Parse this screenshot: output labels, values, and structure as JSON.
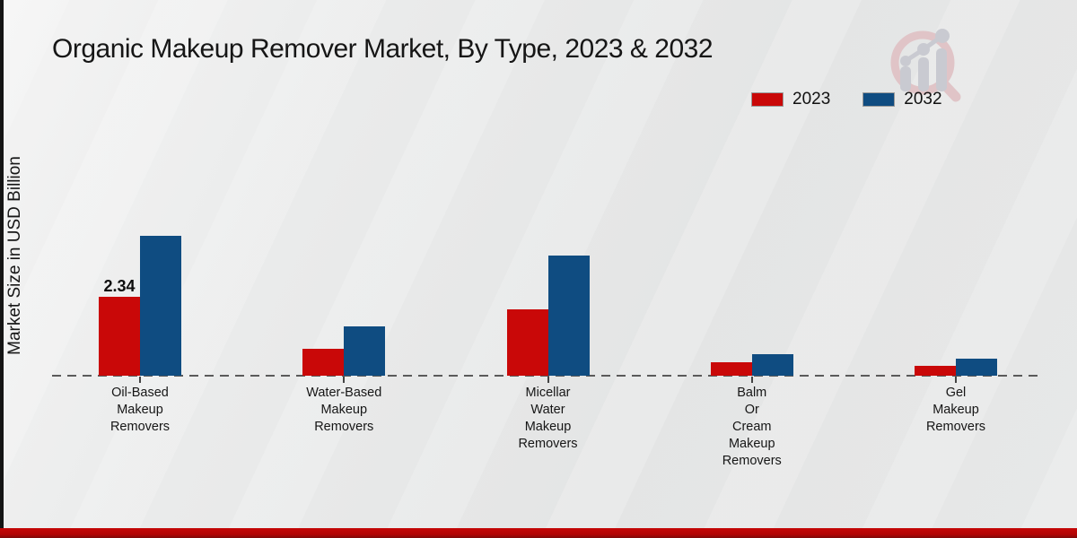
{
  "page": {
    "title": "Organic Makeup Remover Market, By Type, 2023 & 2032",
    "ylabel": "Market Size in USD Billion",
    "brand_logo_icon": "magnifier-bar-chart-logo",
    "footer_band_color": "#b30505",
    "left_strip_color": "#141414"
  },
  "legend": {
    "items": [
      {
        "label": "2023",
        "color": "#c90808"
      },
      {
        "label": "2032",
        "color": "#0f4c81"
      }
    ]
  },
  "chart_data": {
    "type": "bar",
    "title": "Organic Makeup Remover Market, By Type, 2023 & 2032",
    "ylabel": "Market Size in USD Billion",
    "xlabel": "",
    "categories": [
      "Oil-Based Makeup Removers",
      "Water-Based Makeup Removers",
      "Micellar Water Makeup Removers",
      "Balm Or Cream Makeup Removers",
      "Gel Makeup Removers"
    ],
    "category_label_lines": [
      [
        "Oil-Based",
        "Makeup",
        "Removers"
      ],
      [
        "Water-Based",
        "Makeup",
        "Removers"
      ],
      [
        "Micellar",
        "Water",
        "Makeup",
        "Removers"
      ],
      [
        "Balm",
        "Or",
        "Cream",
        "Makeup",
        "Removers"
      ],
      [
        "Gel",
        "Makeup",
        "Removers"
      ]
    ],
    "series": [
      {
        "name": "2023",
        "color": "#c90808",
        "values": [
          2.34,
          0.79,
          1.97,
          0.4,
          0.29
        ]
      },
      {
        "name": "2032",
        "color": "#0f4c81",
        "values": [
          4.16,
          1.46,
          3.59,
          0.63,
          0.52
        ]
      }
    ],
    "data_labels": [
      {
        "series": "2023",
        "category_index": 0,
        "text": "2.34"
      }
    ],
    "ylim": [
      0,
      4.6
    ],
    "grid": false,
    "legend_position": "top-right",
    "baseline_style": "dashed-zero-line"
  }
}
